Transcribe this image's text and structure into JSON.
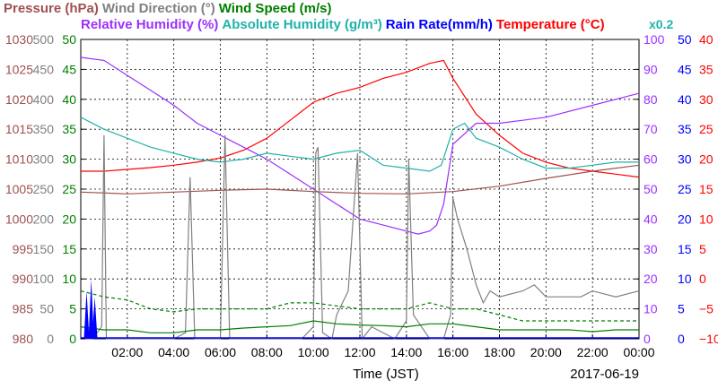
{
  "chart_data": {
    "type": "line",
    "legend_row1": [
      {
        "name": "Pressure (hPa)",
        "color": "#a05050"
      },
      {
        "name": "Wind Direction (°)",
        "color": "#808080"
      },
      {
        "name": "Wind Speed (m/s)",
        "color": "#008000"
      }
    ],
    "legend_row2": [
      {
        "name": "Relative Humidity (%)",
        "color": "#9b30ff"
      },
      {
        "name": "Absolute Humidity (g/m³)",
        "color": "#20b2aa"
      },
      {
        "name": "Rain Rate(mm/h)",
        "color": "#0000ff"
      },
      {
        "name": "Temperature (°C)",
        "color": "#ff0000"
      }
    ],
    "rain_multiplier_label": "x0.2",
    "xlabel": "Time (JST)",
    "date_label": "2017-06-19",
    "x_ticks": [
      "02:00",
      "04:00",
      "06:00",
      "08:00",
      "10:00",
      "12:00",
      "14:00",
      "16:00",
      "18:00",
      "20:00",
      "22:00",
      "00:00"
    ],
    "x_range_hours": [
      0,
      24
    ],
    "axes": {
      "pressure": {
        "label_color": "#a05050",
        "ticks": [
          "1030",
          "1025",
          "1020",
          "1015",
          "1010",
          "1005",
          "1000",
          "995",
          "990",
          "985",
          "980"
        ],
        "range": [
          980,
          1030
        ]
      },
      "wind_direction": {
        "label_color": "#808080",
        "ticks": [
          "500",
          "450",
          "400",
          "350",
          "300",
          "250",
          "200",
          "150",
          "100",
          "50",
          "0"
        ],
        "range": [
          0,
          500
        ]
      },
      "wind_speed": {
        "label_color": "#008000",
        "ticks": [
          "50",
          "45",
          "40",
          "35",
          "30",
          "25",
          "20",
          "15",
          "10",
          "5",
          "0"
        ],
        "range": [
          0,
          50
        ]
      },
      "relative_humidity": {
        "label_color": "#9b30ff",
        "ticks": [
          "100",
          "90",
          "80",
          "70",
          "60",
          "50",
          "40",
          "30",
          "20",
          "10",
          "0"
        ],
        "range": [
          0,
          100
        ]
      },
      "rain_rate": {
        "label_color": "#0000ff",
        "ticks": [
          "50",
          "45",
          "40",
          "35",
          "30",
          "25",
          "20",
          "15",
          "10",
          "5",
          "0"
        ],
        "range": [
          0,
          50
        ]
      },
      "temperature": {
        "label_color": "#ff0000",
        "ticks": [
          "40",
          "35",
          "30",
          "25",
          "20",
          "15",
          "10",
          "5",
          "0",
          "−5",
          "−10"
        ],
        "range": [
          -10,
          40
        ]
      }
    },
    "series": [
      {
        "name": "Temperature (°C)",
        "color": "#ff0000",
        "axis": "temperature",
        "x": [
          0,
          1,
          2,
          3,
          4,
          5,
          6,
          7,
          8,
          9,
          10,
          11,
          12,
          13,
          14,
          15,
          15.6,
          16,
          17,
          18,
          19,
          20,
          21,
          22,
          23,
          24
        ],
        "y": [
          18,
          18,
          18.3,
          18.6,
          19,
          19.5,
          20.2,
          21.5,
          23.5,
          26.5,
          29.5,
          31,
          32,
          33.5,
          34.5,
          36,
          36.5,
          33.5,
          27.5,
          24,
          21,
          19.5,
          18.5,
          18,
          17.5,
          17
        ]
      },
      {
        "name": "Relative Humidity (%)",
        "color": "#9b30ff",
        "axis": "relative_humidity",
        "x": [
          0,
          1,
          2,
          3,
          4,
          5,
          6,
          7,
          8,
          9,
          10,
          11,
          12,
          13,
          14,
          14.5,
          15,
          15.3,
          15.6,
          16,
          17,
          18,
          19,
          20,
          21,
          22,
          23,
          24
        ],
        "y": [
          94,
          93,
          88,
          83,
          78,
          72,
          68,
          64,
          60,
          55,
          50,
          45,
          40,
          38,
          36,
          35,
          36,
          38,
          45,
          65,
          72,
          72,
          73,
          74,
          76,
          78,
          80,
          82
        ]
      },
      {
        "name": "Absolute Humidity (g/m³)",
        "color": "#20b2aa",
        "axis": "rain_rate",
        "x": [
          0,
          1,
          2,
          3,
          4,
          5,
          6,
          7,
          8,
          9,
          10,
          11,
          12,
          13,
          14,
          15,
          15.5,
          16,
          16.5,
          17,
          18,
          19,
          20,
          21,
          22,
          23,
          24
        ],
        "y": [
          37,
          35,
          33.5,
          32,
          31,
          30,
          29.5,
          30,
          31,
          30.5,
          30,
          31,
          31.5,
          29,
          28.5,
          28,
          29,
          35,
          36,
          33.5,
          32,
          30,
          28.5,
          28.5,
          29,
          29.5,
          29.5
        ]
      },
      {
        "name": "Pressure (hPa)",
        "color": "#a05050",
        "axis": "pressure",
        "x": [
          0,
          2,
          4,
          6,
          8,
          10,
          12,
          14,
          16,
          18,
          20,
          22,
          24
        ],
        "y": [
          1004.5,
          1004.2,
          1004.5,
          1004.8,
          1005,
          1004.6,
          1004.3,
          1004.2,
          1004.6,
          1005.5,
          1006.8,
          1008,
          1009
        ]
      },
      {
        "name": "Wind Direction (°)",
        "color": "#808080",
        "axis": "wind_direction",
        "x": [
          0,
          0.5,
          0.9,
          1,
          1.1,
          1.5,
          2,
          3,
          4,
          4.5,
          4.7,
          4.9,
          5.5,
          6,
          6.2,
          6.4,
          6.8,
          8,
          9.5,
          10,
          10.1,
          10.2,
          10.4,
          10.8,
          11,
          11.5,
          11.9,
          12.1,
          12.5,
          13.5,
          14,
          14.1,
          14.3,
          15,
          15.6,
          15.9,
          16,
          16.2,
          16.6,
          17,
          17.3,
          17.6,
          18,
          19,
          19.5,
          20,
          21,
          21.5,
          22,
          23,
          24
        ],
        "y": [
          0,
          0,
          20,
          340,
          0,
          0,
          0,
          0,
          0,
          10,
          270,
          0,
          0,
          0,
          340,
          0,
          0,
          0,
          0,
          20,
          310,
          320,
          10,
          0,
          40,
          80,
          310,
          0,
          20,
          0,
          30,
          300,
          40,
          0,
          0,
          40,
          235,
          200,
          150,
          90,
          60,
          80,
          70,
          80,
          90,
          70,
          70,
          70,
          80,
          70,
          80
        ]
      },
      {
        "name": "Wind Speed (m/s)",
        "color": "#008000",
        "axis": "wind_speed",
        "x": [
          0,
          1,
          2,
          3,
          4,
          5,
          6,
          7,
          8,
          9,
          10,
          11,
          12,
          13,
          14,
          15,
          16,
          17,
          18,
          19,
          20,
          21,
          22,
          23,
          24
        ],
        "y": [
          2,
          1.5,
          1.5,
          1,
          1,
          1.5,
          1.5,
          1.8,
          2,
          2.2,
          3,
          2.5,
          2.3,
          2.2,
          2,
          2.5,
          2.5,
          2,
          1.5,
          1.5,
          1.5,
          1.5,
          1.2,
          1.5,
          1.5
        ]
      },
      {
        "name": "Wind Speed max",
        "color": "#008000",
        "axis": "wind_speed",
        "dashed": true,
        "x": [
          0,
          1,
          2,
          3,
          4,
          5,
          6,
          7,
          8,
          9,
          10,
          11,
          12,
          13,
          14,
          15,
          16,
          17,
          18,
          19,
          20,
          21,
          22,
          23,
          24
        ],
        "y": [
          8,
          7,
          6.5,
          5,
          4.5,
          5,
          5,
          5,
          5,
          6,
          6,
          5.5,
          5,
          5,
          5,
          6,
          5,
          5,
          4,
          3,
          3,
          3,
          3,
          3,
          3
        ]
      }
    ]
  }
}
